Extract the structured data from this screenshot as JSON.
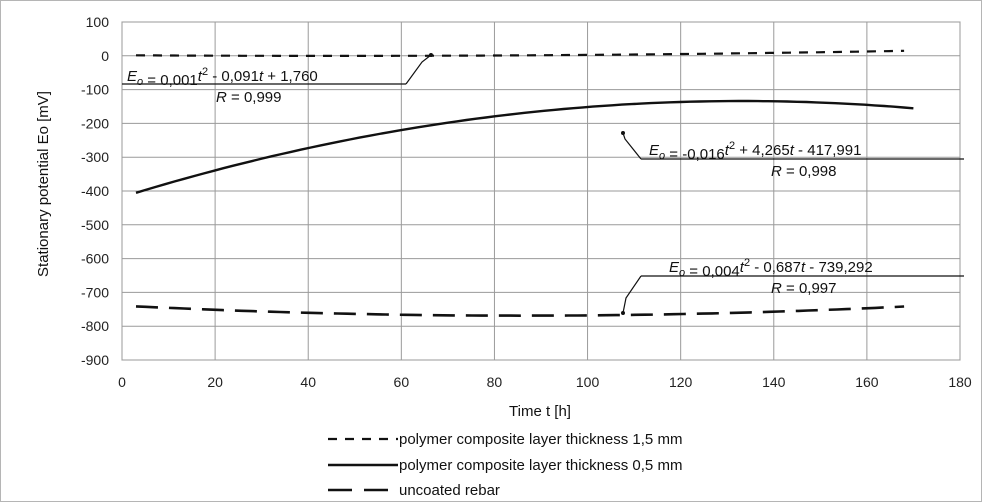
{
  "chart_data": {
    "type": "line",
    "xlabel": "Time t [h]",
    "ylabel": "Stationary potential Eo [mV]",
    "xlim": [
      0,
      180
    ],
    "ylim": [
      -900,
      100
    ],
    "xticks": [
      0,
      20,
      40,
      60,
      80,
      100,
      120,
      140,
      160,
      180
    ],
    "yticks": [
      100,
      0,
      -100,
      -200,
      -300,
      -400,
      -500,
      -600,
      -700,
      -800,
      -900
    ],
    "grid": true,
    "legend_position": "bottom",
    "series": [
      {
        "name": "polymer composite layer thickness 1,5 mm",
        "style": "dotted",
        "color": "#111111",
        "coefficients": {
          "a": 0.001,
          "b": -0.091,
          "c": 1.76
        },
        "x_range": [
          3,
          168
        ],
        "x": [
          3,
          20,
          40,
          60,
          80,
          100,
          120,
          140,
          160,
          168
        ],
        "y": [
          1.5,
          0.3,
          0.0,
          0.7,
          1.9,
          2.5,
          4.0,
          6.0,
          10.0,
          14.0
        ],
        "equation": {
          "lhs": "E",
          "sub": "o",
          "mid": " = 0,001",
          "t1": "t",
          "sup": "2",
          "rest1": " - 0,091",
          "t2": "t",
          "rest2": " + 1,760"
        },
        "r_label": "R",
        "r_value": " = 0,999"
      },
      {
        "name": "polymer composite layer thickness 0,5 mm",
        "style": "solid",
        "color": "#111111",
        "coefficients": {
          "a": -0.016,
          "b": 4.265,
          "c": -417.991
        },
        "x_range": [
          3,
          170
        ],
        "x": [
          3,
          20,
          40,
          60,
          80,
          100,
          120,
          140,
          160,
          170
        ],
        "y": [
          -405,
          -339,
          -273,
          -219,
          -179,
          -154,
          -139,
          -136,
          -145,
          -154
        ],
        "equation": {
          "lhs": "E",
          "sub": "o",
          "mid": " = -0,016",
          "t1": "t",
          "sup": "2",
          "rest1": " + 4,265",
          "t2": "t",
          "rest2": " - 417,991"
        },
        "r_label": "R",
        "r_value": " = 0,998"
      },
      {
        "name": "uncoated rebar",
        "style": "dashed",
        "color": "#111111",
        "coefficients": {
          "a": 0.004,
          "b": -0.687,
          "c": -739.292
        },
        "x_range": [
          3,
          168
        ],
        "x": [
          3,
          20,
          40,
          60,
          80,
          100,
          120,
          140,
          160,
          168
        ],
        "y": [
          -741,
          -752,
          -761,
          -768,
          -771,
          -774,
          -772,
          -764,
          -751,
          -747
        ],
        "equation": {
          "lhs": "E",
          "sub": "o",
          "mid": " = 0,004",
          "t1": "t",
          "sup": "2",
          "rest1": " - 0,687",
          "t2": "t",
          "rest2": " - 739,292"
        },
        "r_label": "R",
        "r_value": " = 0,997"
      }
    ]
  }
}
